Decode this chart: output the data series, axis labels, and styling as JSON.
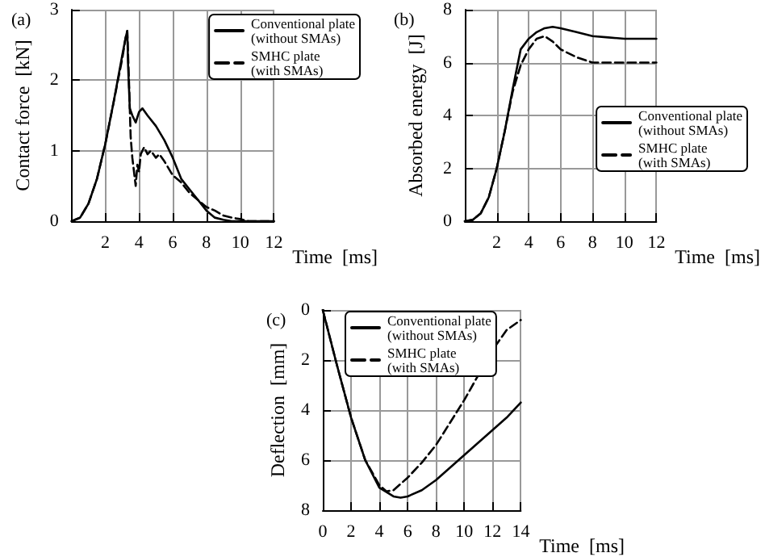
{
  "chart_data": [
    {
      "type": "line",
      "title": "(a)",
      "xlabel": "Time  [ms]",
      "ylabel": "Contact force  [kN]",
      "xlim": [
        0,
        12
      ],
      "xticks": [
        {
          "value": 0,
          "label": null
        },
        2,
        4,
        6,
        8,
        10,
        12
      ],
      "ylim": [
        0,
        3
      ],
      "yticks": [
        0,
        1,
        2,
        3
      ],
      "grid": true,
      "legend": "top right",
      "series": [
        {
          "name": "Conventional plate (without SMAs)",
          "color": "#000000",
          "line_style": "solid",
          "x": [
            0,
            0.5,
            1,
            1.5,
            2,
            2.5,
            3,
            3.2,
            3.3,
            3.35,
            3.45,
            3.6,
            3.8,
            4,
            4.2,
            4.5,
            5,
            5.5,
            6,
            6.5,
            7,
            7.5,
            8,
            8.5,
            9,
            9.5,
            10,
            12
          ],
          "values": [
            0,
            0.05,
            0.25,
            0.6,
            1.1,
            1.7,
            2.35,
            2.6,
            2.7,
            2.2,
            1.6,
            1.5,
            1.4,
            1.55,
            1.6,
            1.5,
            1.35,
            1.15,
            0.9,
            0.6,
            0.45,
            0.3,
            0.15,
            0.05,
            0.02,
            0,
            0,
            0
          ]
        },
        {
          "name": "SMHC plate (with SMAs)",
          "color": "#000000",
          "line_style": "dashed",
          "x": [
            0,
            0.5,
            1,
            1.5,
            2,
            2.5,
            3,
            3.2,
            3.3,
            3.4,
            3.5,
            3.6,
            3.7,
            3.8,
            3.9,
            4,
            4.1,
            4.3,
            4.5,
            4.7,
            5,
            5.2,
            5.5,
            6,
            6.5,
            7,
            7.5,
            8,
            8.5,
            9,
            9.5,
            10,
            10.5,
            12
          ],
          "values": [
            0,
            0.05,
            0.25,
            0.6,
            1.1,
            1.7,
            2.3,
            2.6,
            2.7,
            2,
            1.2,
            0.9,
            0.7,
            0.5,
            0.8,
            0.7,
            0.95,
            1.05,
            0.95,
            1,
            0.9,
            0.95,
            0.85,
            0.65,
            0.55,
            0.4,
            0.3,
            0.2,
            0.15,
            0.08,
            0.05,
            0.03,
            0,
            0
          ]
        }
      ]
    },
    {
      "type": "line",
      "title": "(b)",
      "xlabel": "Time  [ms]",
      "ylabel": "Absorbed energy  [J]",
      "xlim": [
        0,
        12
      ],
      "xticks": [
        {
          "value": 0,
          "label": null
        },
        2,
        4,
        6,
        8,
        10,
        12
      ],
      "ylim": [
        0,
        8
      ],
      "yticks": [
        0,
        2,
        4,
        6,
        8
      ],
      "grid": true,
      "legend": "right",
      "series": [
        {
          "name": "Conventional plate (without SMAs)",
          "color": "#000000",
          "line_style": "solid",
          "x": [
            0,
            0.5,
            1,
            1.5,
            2,
            2.5,
            3,
            3.5,
            4,
            4.5,
            5,
            5.5,
            6,
            7,
            8,
            9,
            10,
            12
          ],
          "values": [
            0,
            0.05,
            0.3,
            0.9,
            2,
            3.4,
            5,
            6.5,
            6.9,
            7.15,
            7.3,
            7.35,
            7.3,
            7.15,
            7,
            6.95,
            6.9,
            6.9
          ]
        },
        {
          "name": "SMHC plate (with SMAs)",
          "color": "#000000",
          "line_style": "dashed",
          "x": [
            0,
            0.5,
            1,
            1.5,
            2,
            2.5,
            3,
            3.5,
            4,
            4.5,
            5,
            5.5,
            6,
            7,
            8,
            9,
            12
          ],
          "values": [
            0,
            0.05,
            0.3,
            0.9,
            2,
            3.4,
            4.9,
            5.9,
            6.5,
            6.9,
            7,
            6.8,
            6.5,
            6.2,
            6,
            6,
            6
          ]
        }
      ]
    },
    {
      "type": "line",
      "title": "(c)",
      "xlabel": "Time  [ms]",
      "ylabel": "Deflection  [mm]",
      "xlim": [
        0,
        14
      ],
      "xticks": [
        0,
        2,
        4,
        6,
        8,
        10,
        12,
        14
      ],
      "ylim": [
        8,
        0
      ],
      "yticks": [
        0,
        2,
        4,
        6,
        8
      ],
      "grid": true,
      "legend": "top",
      "series": [
        {
          "name": "Conventional plate (without SMAs)",
          "color": "#000000",
          "line_style": "solid",
          "x": [
            0,
            1,
            2,
            3,
            4,
            5,
            5.5,
            6,
            7,
            8,
            9,
            10,
            11,
            12,
            13,
            14
          ],
          "values": [
            0,
            2.2,
            4.3,
            6,
            7.1,
            7.45,
            7.5,
            7.45,
            7.2,
            6.8,
            6.3,
            5.8,
            5.3,
            4.8,
            4.3,
            3.7
          ]
        },
        {
          "name": "SMHC plate (with SMAs)",
          "color": "#000000",
          "line_style": "dashed",
          "x": [
            0,
            1,
            2,
            3,
            4,
            4.5,
            5,
            6,
            7,
            8,
            9,
            10,
            11,
            12,
            13,
            14
          ],
          "values": [
            0,
            2.2,
            4.3,
            6,
            7,
            7.25,
            7.2,
            6.7,
            6.1,
            5.4,
            4.5,
            3.6,
            2.6,
            1.6,
            0.8,
            0.4
          ]
        }
      ]
    }
  ]
}
